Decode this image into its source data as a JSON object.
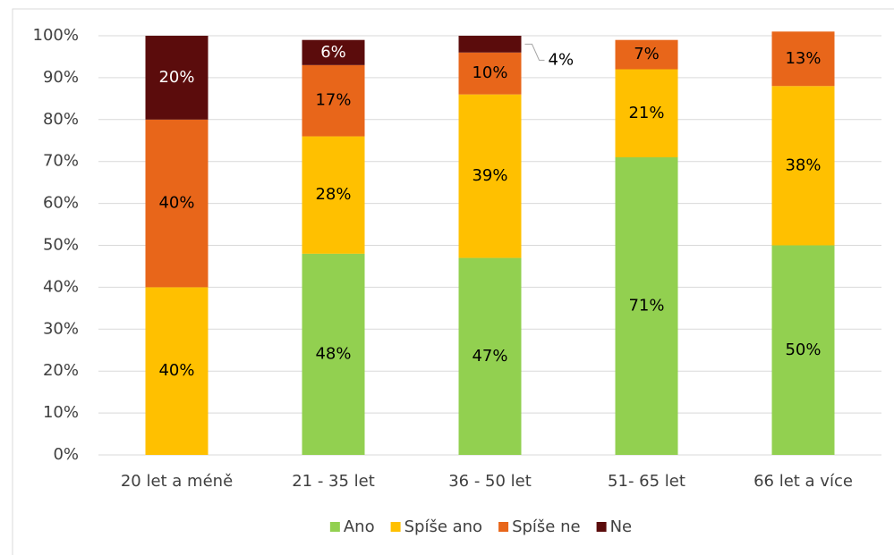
{
  "chart_data": {
    "type": "stacked_bar",
    "categories": [
      "20 let a méně",
      "21 - 35 let",
      "36 - 50 let",
      "51- 65 let",
      "66 let a více"
    ],
    "series": [
      {
        "name": "Ano",
        "color": "#92d050",
        "values": [
          null,
          48,
          47,
          71,
          50
        ],
        "value_labels": [
          null,
          "48%",
          "47%",
          "71%",
          "50%"
        ]
      },
      {
        "name": "Spíše ano",
        "color": "#ffc000",
        "values": [
          40,
          28,
          39,
          21,
          38
        ],
        "value_labels": [
          "40%",
          "28%",
          "39%",
          "21%",
          "38%"
        ]
      },
      {
        "name": "Spíše ne",
        "color": "#e8661a",
        "values": [
          40,
          17,
          10,
          7,
          13
        ],
        "value_labels": [
          "40%",
          "17%",
          "10%",
          "7%",
          "13%"
        ]
      },
      {
        "name": "Ne",
        "color": "#5b0c0c",
        "values": [
          20,
          6,
          4,
          null,
          null
        ],
        "value_labels": [
          "20%",
          "6%",
          "4%",
          null,
          null
        ]
      }
    ],
    "ylim": [
      0,
      100
    ],
    "yticks": [
      {
        "value": 0,
        "label": "0%"
      },
      {
        "value": 10,
        "label": "10%"
      },
      {
        "value": 20,
        "label": "20%"
      },
      {
        "value": 30,
        "label": "30%"
      },
      {
        "value": 40,
        "label": "40%"
      },
      {
        "value": 50,
        "label": "50%"
      },
      {
        "value": 60,
        "label": "60%"
      },
      {
        "value": 70,
        "label": "70%"
      },
      {
        "value": 80,
        "label": "80%"
      },
      {
        "value": 90,
        "label": "90%"
      },
      {
        "value": 100,
        "label": "100%"
      }
    ],
    "grid": true,
    "legend": "bottom"
  }
}
